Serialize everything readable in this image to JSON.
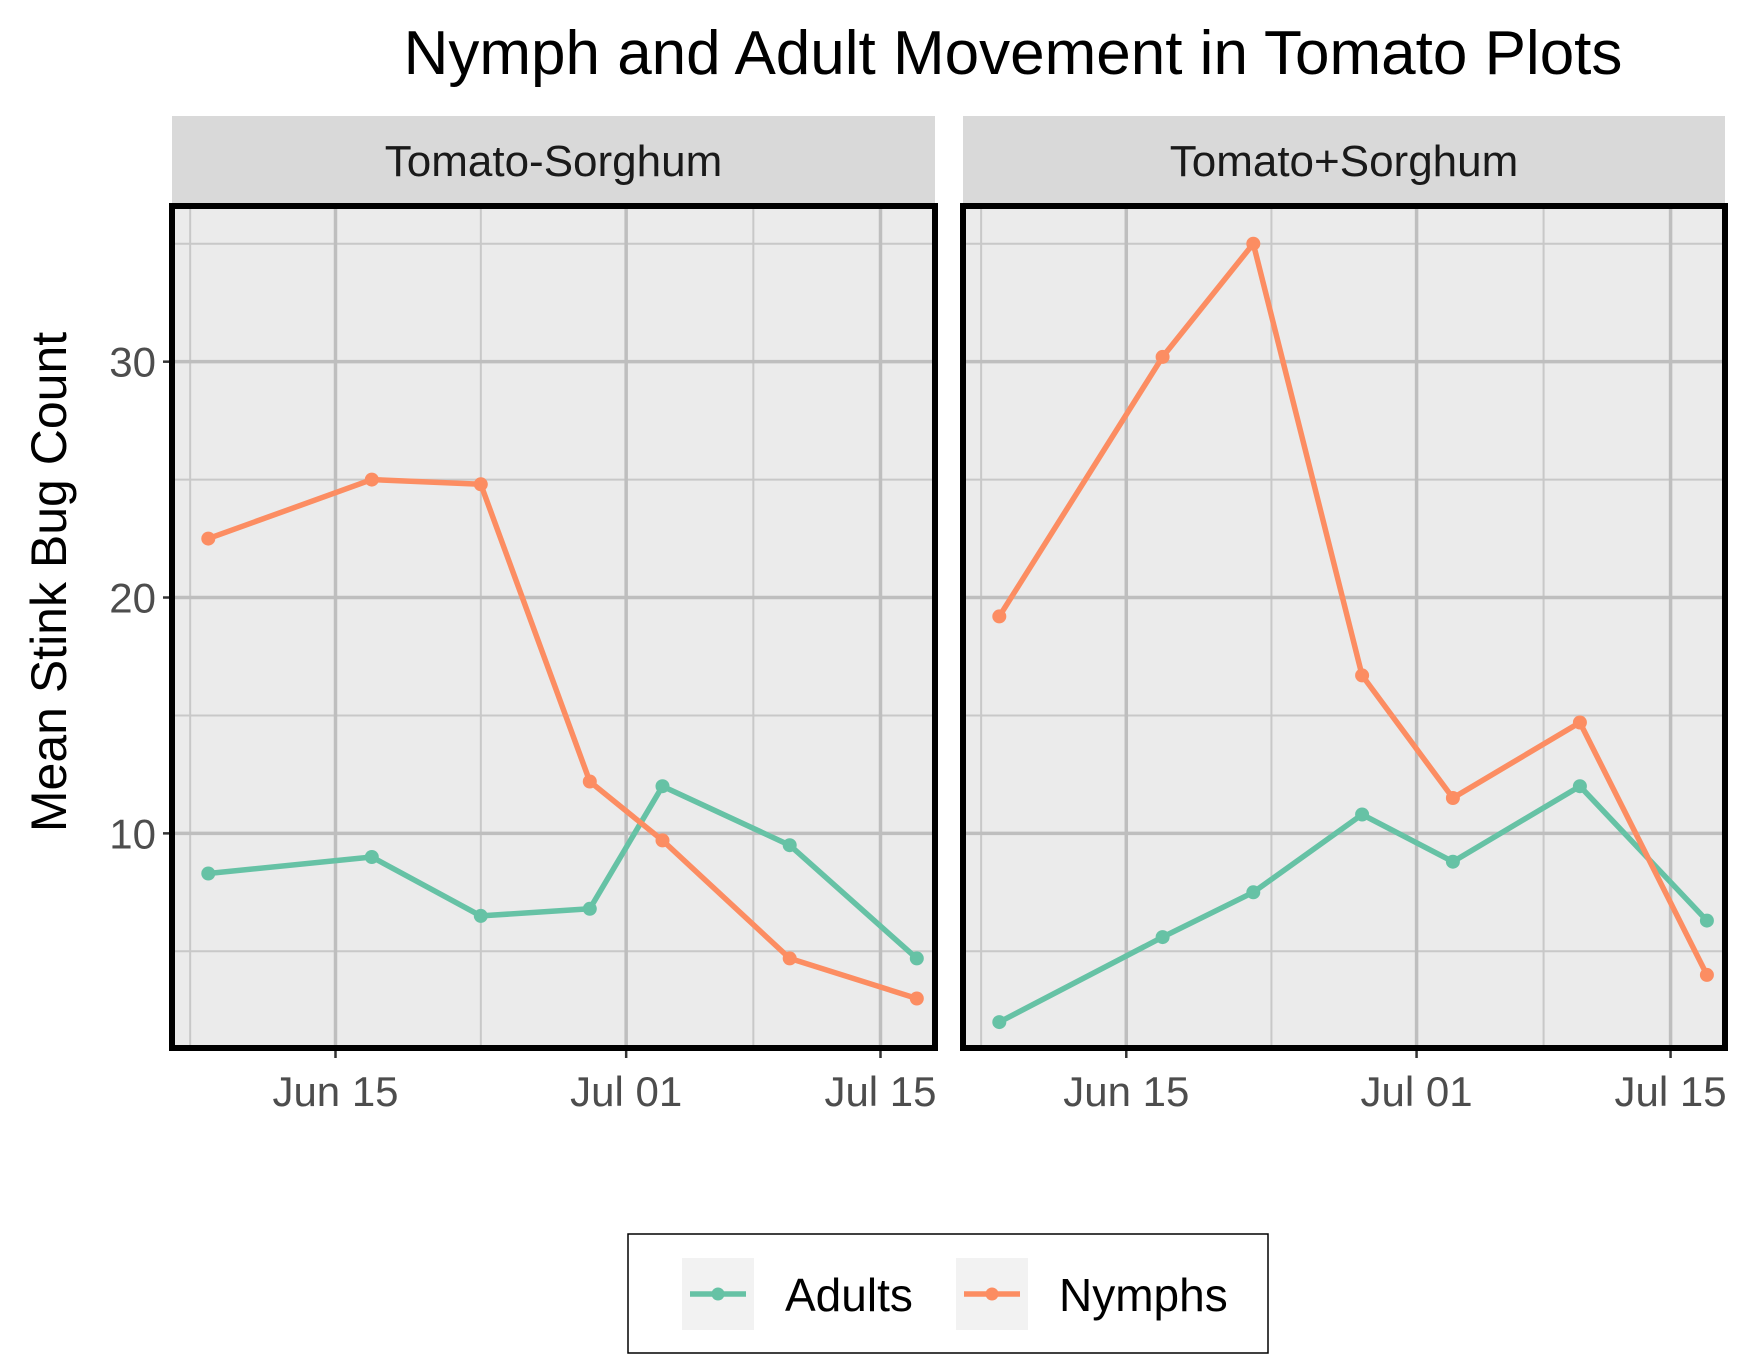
{
  "colors": {
    "adults": "#66C2A5",
    "nymphs": "#FC8D62",
    "panel_bg": "#EBEBEB",
    "strip_bg": "#D9D9D9",
    "grid_major": "#BEBEBE",
    "grid_minor": "#C8C8C8",
    "frame": "#000000"
  },
  "chart_data": {
    "type": "line",
    "title": "Nymph and Adult Movement in Tomato Plots",
    "ylabel": "Mean Stink Bug Count",
    "xlabel": "",
    "ylim": [
      0.9,
      36.6
    ],
    "y_ticks": [
      10,
      20,
      30
    ],
    "y_tick_labels": [
      "10",
      "20",
      "30"
    ],
    "x_type": "date",
    "xlim": [
      "2019-06-06",
      "2019-07-18"
    ],
    "x_ticks": [
      "2019-06-15",
      "2019-07-01",
      "2019-07-15"
    ],
    "x_tick_labels": [
      "Jun 15",
      "Jul 01",
      "Jul 15"
    ],
    "legend": {
      "position": "bottom",
      "entries": [
        "Adults",
        "Nymphs"
      ]
    },
    "grid": true,
    "panels": [
      {
        "name": "Tomato-Sorghum",
        "series": [
          {
            "name": "Adults",
            "x": [
              "2019-06-08",
              "2019-06-17",
              "2019-06-23",
              "2019-06-29",
              "2019-07-03",
              "2019-07-10",
              "2019-07-17"
            ],
            "values": [
              8.3,
              9.0,
              6.5,
              6.8,
              12.0,
              9.5,
              4.7
            ]
          },
          {
            "name": "Nymphs",
            "x": [
              "2019-06-08",
              "2019-06-17",
              "2019-06-23",
              "2019-06-29",
              "2019-07-03",
              "2019-07-10",
              "2019-07-17"
            ],
            "values": [
              22.5,
              25.0,
              24.8,
              12.2,
              9.7,
              4.7,
              3.0
            ]
          }
        ]
      },
      {
        "name": "Tomato+Sorghum",
        "series": [
          {
            "name": "Adults",
            "x": [
              "2019-06-08",
              "2019-06-17",
              "2019-06-22",
              "2019-06-28",
              "2019-07-03",
              "2019-07-10",
              "2019-07-17"
            ],
            "values": [
              2.0,
              5.6,
              7.5,
              10.8,
              8.8,
              12.0,
              6.3
            ]
          },
          {
            "name": "Nymphs",
            "x": [
              "2019-06-08",
              "2019-06-17",
              "2019-06-22",
              "2019-06-28",
              "2019-07-03",
              "2019-07-10",
              "2019-07-17"
            ],
            "values": [
              19.2,
              30.2,
              35.0,
              16.7,
              11.5,
              14.7,
              4.0
            ]
          }
        ]
      }
    ]
  }
}
